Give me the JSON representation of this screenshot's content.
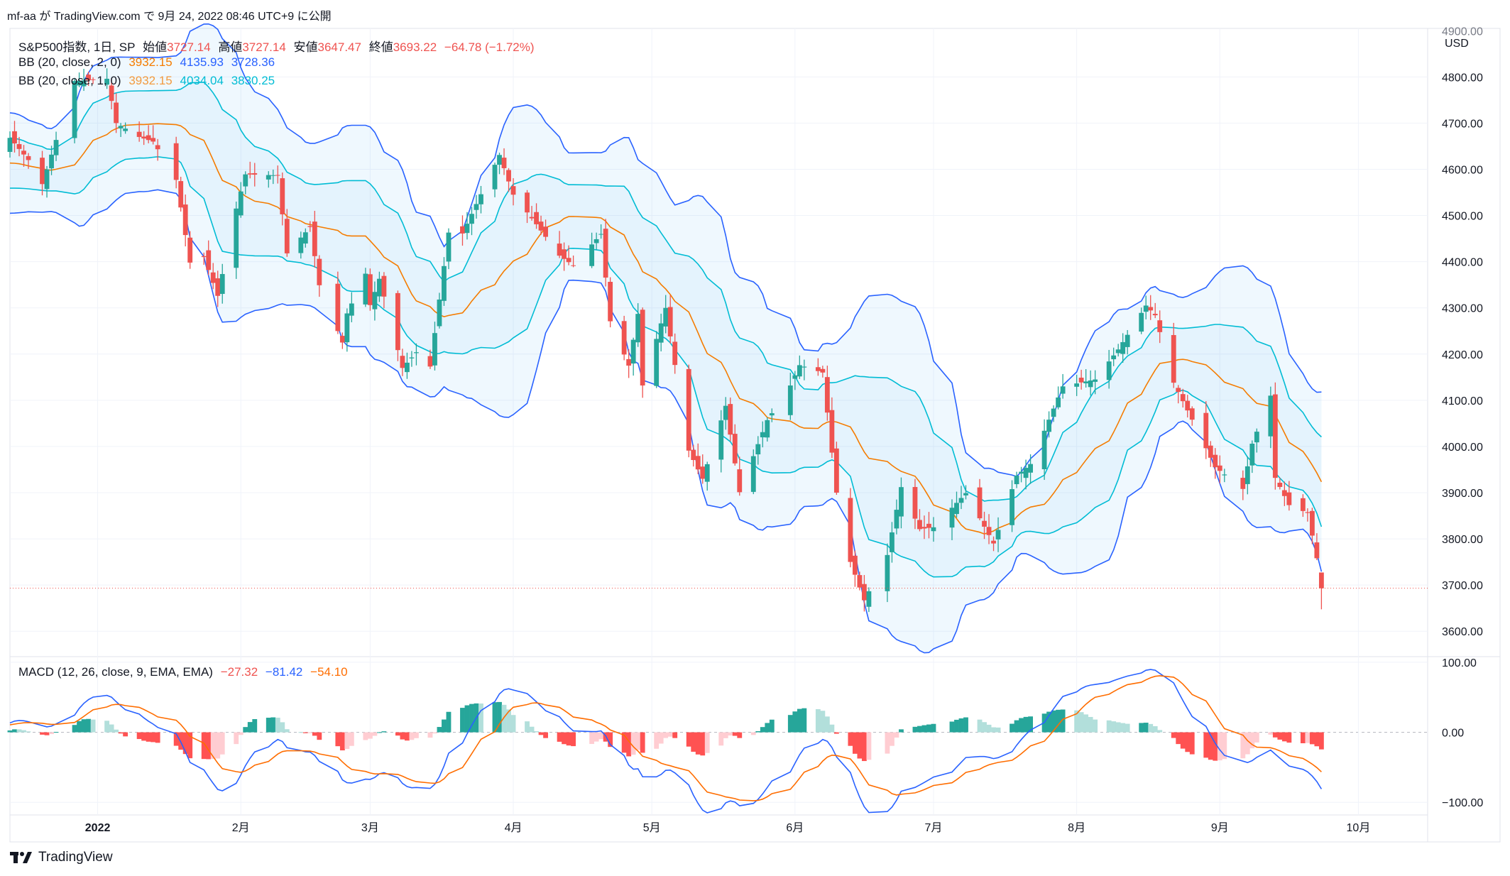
{
  "publish_line": "mf-aa が TradingView.com で 9月 24, 2022 08:46 UTC+9 に公開",
  "footer_logo": "TradingView",
  "currency": "USD",
  "legend": {
    "symbol": "S&P500指数, 1日, SP",
    "ohlc_labels": {
      "open": "始値",
      "high": "高値",
      "low": "安値",
      "close": "終値"
    },
    "open": "3727.14",
    "high": "3727.14",
    "low": "3647.47",
    "close": "3693.22",
    "change": "−64.78 (−1.72%)",
    "bb2_label": "BB (20, close, 2, 0)",
    "bb2_basis": "3932.15",
    "bb2_upper": "4135.93",
    "bb2_lower": "3728.36",
    "bb1_label": "BB (20, close, 1, 0)",
    "bb1_basis": "3932.15",
    "bb1_upper": "4034.04",
    "bb1_lower": "3830.25",
    "macd_label": "MACD (12, 26, close, 9, EMA, EMA)",
    "macd_hist": "−27.32",
    "macd_line": "−81.42",
    "macd_signal": "−54.10"
  },
  "colors": {
    "up": "#26a69a",
    "down": "#ef5350",
    "basis": "#f57c00",
    "bb2": "#2962ff",
    "bb1": "#00bcd4",
    "macd_line": "#2962ff",
    "signal_line": "#ff6d00"
  },
  "chart_data": [
    {
      "type": "candlestick",
      "title": "S&P500指数, 1日, SP",
      "price_axis_ticks": [
        "3600.00",
        "3700.00",
        "3800.00",
        "3900.00",
        "4000.00",
        "4100.00",
        "4200.00",
        "4300.00",
        "4400.00",
        "4500.00",
        "4600.00",
        "4700.00",
        "4800.00",
        "4900.00"
      ],
      "x_axis_ticks": [
        "2022",
        "2月",
        "3月",
        "4月",
        "5月",
        "6月",
        "7月",
        "8月",
        "9月",
        "10月"
      ],
      "ylim": [
        3545,
        4905
      ],
      "x_domain": [
        "2021-12-13",
        "2022-10-16"
      ],
      "last_close": 3693.22,
      "close_anchors": [
        [
          "2021-12-13",
          4668
        ],
        [
          "2021-12-17",
          4620
        ],
        [
          "2021-12-20",
          4568
        ],
        [
          "2021-12-27",
          4791
        ],
        [
          "2022-01-03",
          4796
        ],
        [
          "2022-01-05",
          4700
        ],
        [
          "2022-01-10",
          4670
        ],
        [
          "2022-01-13",
          4660
        ],
        [
          "2022-01-18",
          4577
        ],
        [
          "2022-01-21",
          4398
        ],
        [
          "2022-01-24",
          4410
        ],
        [
          "2022-01-27",
          4326
        ],
        [
          "2022-01-31",
          4515
        ],
        [
          "2022-02-02",
          4589
        ],
        [
          "2022-02-09",
          4587
        ],
        [
          "2022-02-11",
          4418
        ],
        [
          "2022-02-16",
          4475
        ],
        [
          "2022-02-18",
          4349
        ],
        [
          "2022-02-23",
          4225
        ],
        [
          "2022-02-24",
          4288
        ],
        [
          "2022-02-28",
          4374
        ],
        [
          "2022-03-01",
          4306
        ],
        [
          "2022-03-03",
          4363
        ],
        [
          "2022-03-08",
          4170
        ],
        [
          "2022-03-11",
          4204
        ],
        [
          "2022-03-14",
          4173
        ],
        [
          "2022-03-18",
          4463
        ],
        [
          "2022-03-21",
          4461
        ],
        [
          "2022-03-29",
          4631
        ],
        [
          "2022-04-01",
          4545
        ],
        [
          "2022-04-06",
          4481
        ],
        [
          "2022-04-11",
          4413
        ],
        [
          "2022-04-14",
          4392
        ],
        [
          "2022-04-20",
          4460
        ],
        [
          "2022-04-22",
          4271
        ],
        [
          "2022-04-26",
          4175
        ],
        [
          "2022-04-28",
          4287
        ],
        [
          "2022-04-29",
          4132
        ],
        [
          "2022-05-04",
          4300
        ],
        [
          "2022-05-09",
          3991
        ],
        [
          "2022-05-12",
          3930
        ],
        [
          "2022-05-17",
          4088
        ],
        [
          "2022-05-20",
          3901
        ],
        [
          "2022-05-26",
          4057
        ],
        [
          "2022-05-31",
          4132
        ],
        [
          "2022-06-02",
          4176
        ],
        [
          "2022-06-07",
          4160
        ],
        [
          "2022-06-10",
          3900
        ],
        [
          "2022-06-13",
          3750
        ],
        [
          "2022-06-16",
          3667
        ],
        [
          "2022-06-21",
          3765
        ],
        [
          "2022-06-24",
          3912
        ],
        [
          "2022-06-28",
          3821
        ],
        [
          "2022-07-01",
          3825
        ],
        [
          "2022-07-08",
          3899
        ],
        [
          "2022-07-14",
          3790
        ],
        [
          "2022-07-19",
          3937
        ],
        [
          "2022-07-22",
          3962
        ],
        [
          "2022-07-29",
          4130
        ],
        [
          "2022-08-05",
          4145
        ],
        [
          "2022-08-10",
          4210
        ],
        [
          "2022-08-16",
          4305
        ],
        [
          "2022-08-18",
          4284
        ],
        [
          "2022-08-22",
          4138
        ],
        [
          "2022-08-26",
          4058
        ],
        [
          "2022-08-31",
          3955
        ],
        [
          "2022-09-06",
          3908
        ],
        [
          "2022-09-08",
          4006
        ],
        [
          "2022-09-12",
          4110
        ],
        [
          "2022-09-13",
          3932
        ],
        [
          "2022-09-16",
          3873
        ],
        [
          "2022-09-20",
          3856
        ],
        [
          "2022-09-22",
          3758
        ],
        [
          "2022-09-23",
          3693
        ]
      ],
      "series": [
        {
          "name": "BB (20, close, 2, 0)"
        },
        {
          "name": "BB (20, close, 1, 0)"
        }
      ]
    },
    {
      "type": "macd",
      "title": "MACD (12, 26, close, 9, EMA, EMA)",
      "y_axis_ticks": [
        "100.00",
        "0.00",
        "−100.00"
      ],
      "ylim": [
        -118,
        108
      ],
      "last_values": {
        "histogram": -27.32,
        "macd": -81.42,
        "signal": -54.1
      }
    }
  ]
}
